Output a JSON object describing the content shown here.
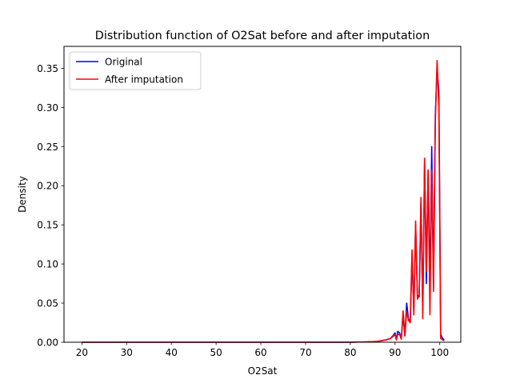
{
  "chart_data": {
    "type": "line",
    "title": "Distribution function of O2Sat before and after imputation",
    "xlabel": "O2Sat",
    "ylabel": "Density",
    "xlim": [
      16.0,
      104.7
    ],
    "ylim": [
      0.0,
      0.378
    ],
    "xticks": [
      20,
      30,
      40,
      50,
      60,
      70,
      80,
      90,
      100
    ],
    "xtick_labels": [
      "20",
      "30",
      "40",
      "50",
      "60",
      "70",
      "80",
      "90",
      "100"
    ],
    "yticks": [
      0.0,
      0.05,
      0.1,
      0.15,
      0.2,
      0.25,
      0.3,
      0.35
    ],
    "ytick_labels": [
      "0.00",
      "0.05",
      "0.10",
      "0.15",
      "0.20",
      "0.25",
      "0.30",
      "0.35"
    ],
    "grid": false,
    "legend": {
      "position": "upper-left",
      "entries": [
        "Original",
        "After imputation"
      ]
    },
    "series": [
      {
        "name": "Original",
        "color": "#0000ff",
        "x": [
          20,
          30,
          40,
          50,
          60,
          70,
          80,
          84,
          86,
          87,
          88,
          88.5,
          89,
          89.5,
          90,
          90.3,
          90.6,
          91,
          91.4,
          91.8,
          92.2,
          92.6,
          93,
          93.4,
          93.8,
          94.2,
          94.6,
          95,
          95.4,
          95.8,
          96.2,
          96.6,
          97,
          97.4,
          97.8,
          98.2,
          98.6,
          99,
          99.4,
          99.8,
          100.2,
          100.6,
          101
        ],
        "values": [
          0.0,
          0.0,
          0.0,
          0.0,
          0.0,
          0.0,
          0.0,
          0.0005,
          0.001,
          0.002,
          0.003,
          0.004,
          0.005,
          0.008,
          0.012,
          0.003,
          0.014,
          0.012,
          0.004,
          0.035,
          0.008,
          0.05,
          0.03,
          0.025,
          0.11,
          0.04,
          0.15,
          0.06,
          0.058,
          0.18,
          0.04,
          0.23,
          0.075,
          0.22,
          0.07,
          0.25,
          0.07,
          0.29,
          0.35,
          0.32,
          0.01,
          0.005,
          0.003
        ]
      },
      {
        "name": "After imputation",
        "color": "#ff0000",
        "x": [
          20,
          30,
          40,
          50,
          60,
          70,
          80,
          84,
          86,
          87,
          88,
          88.5,
          89,
          89.5,
          90,
          90.3,
          90.6,
          91,
          91.4,
          91.8,
          92.2,
          92.6,
          93,
          93.4,
          93.8,
          94.2,
          94.6,
          95,
          95.4,
          95.8,
          96.2,
          96.6,
          97,
          97.4,
          97.8,
          98.2,
          98.6,
          99,
          99.4,
          99.8,
          100.2,
          100.6,
          101
        ],
        "values": [
          0.0,
          0.0,
          0.0,
          0.0,
          0.0,
          0.0,
          0.0,
          0.0005,
          0.001,
          0.002,
          0.003,
          0.004,
          0.005,
          0.007,
          0.01,
          0.003,
          0.01,
          0.01,
          0.004,
          0.04,
          0.008,
          0.04,
          0.028,
          0.025,
          0.118,
          0.035,
          0.155,
          0.055,
          0.06,
          0.185,
          0.03,
          0.235,
          0.09,
          0.22,
          0.035,
          0.22,
          0.065,
          0.28,
          0.36,
          0.3,
          0.005,
          0.003,
          0.002
        ]
      }
    ]
  }
}
